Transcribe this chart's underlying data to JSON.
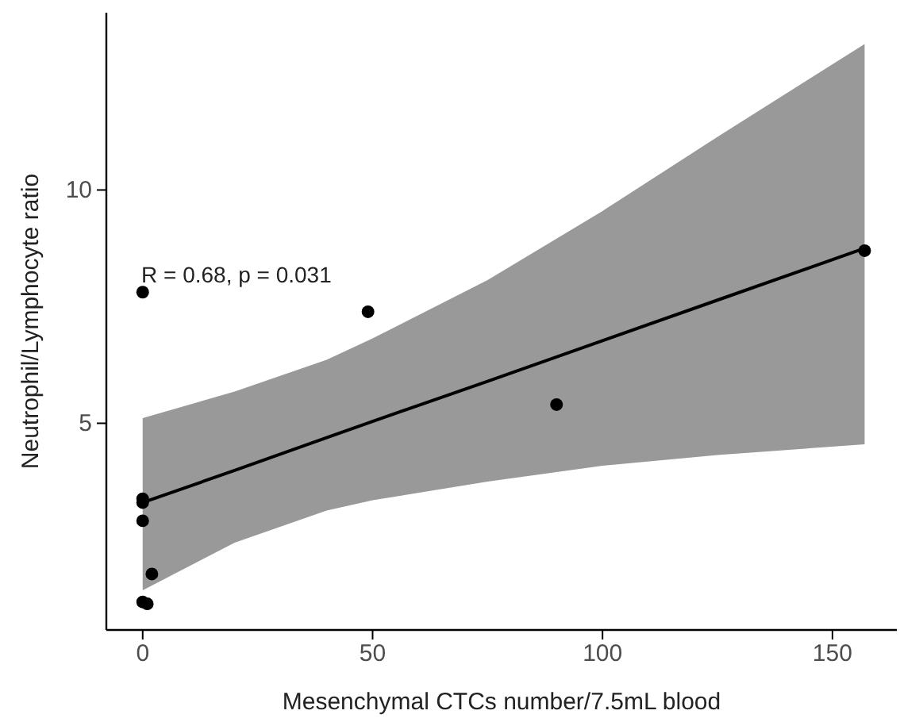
{
  "chart_data": {
    "type": "scatter",
    "xlabel": "Mesenchymal CTCs number/7.5mL blood",
    "ylabel": "Neutrophil/Lymphocyte ratio",
    "xlim": [
      -7.9,
      164
    ],
    "xticks": [
      0,
      50,
      100,
      150
    ],
    "ylim": [
      0.57,
      13.8
    ],
    "yticks": [
      5,
      10
    ],
    "grid": false,
    "marker": "circle",
    "annotations": [
      "R = 0.68, p = 0.031"
    ],
    "series": [
      {
        "type": "line",
        "marker": "none",
        "color": "#000000",
        "x": [
          0,
          20,
          40,
          50,
          75,
          100,
          125,
          157
        ],
        "values": [
          3.3,
          3.99,
          4.69,
          5.04,
          5.9,
          6.77,
          7.64,
          8.75
        ],
        "lower": [
          1.42,
          2.44,
          3.13,
          3.35,
          3.75,
          4.09,
          4.32,
          4.55
        ],
        "upper": [
          5.11,
          5.68,
          6.36,
          6.82,
          8.07,
          9.55,
          11.14,
          13.13
        ]
      },
      {
        "color": "#000000",
        "x": [
          0,
          49,
          90,
          157,
          0,
          0,
          0,
          2,
          0,
          1
        ],
        "values": [
          7.81,
          7.39,
          5.4,
          8.7,
          3.38,
          3.3,
          2.91,
          1.77,
          1.17,
          1.13
        ]
      }
    ]
  }
}
